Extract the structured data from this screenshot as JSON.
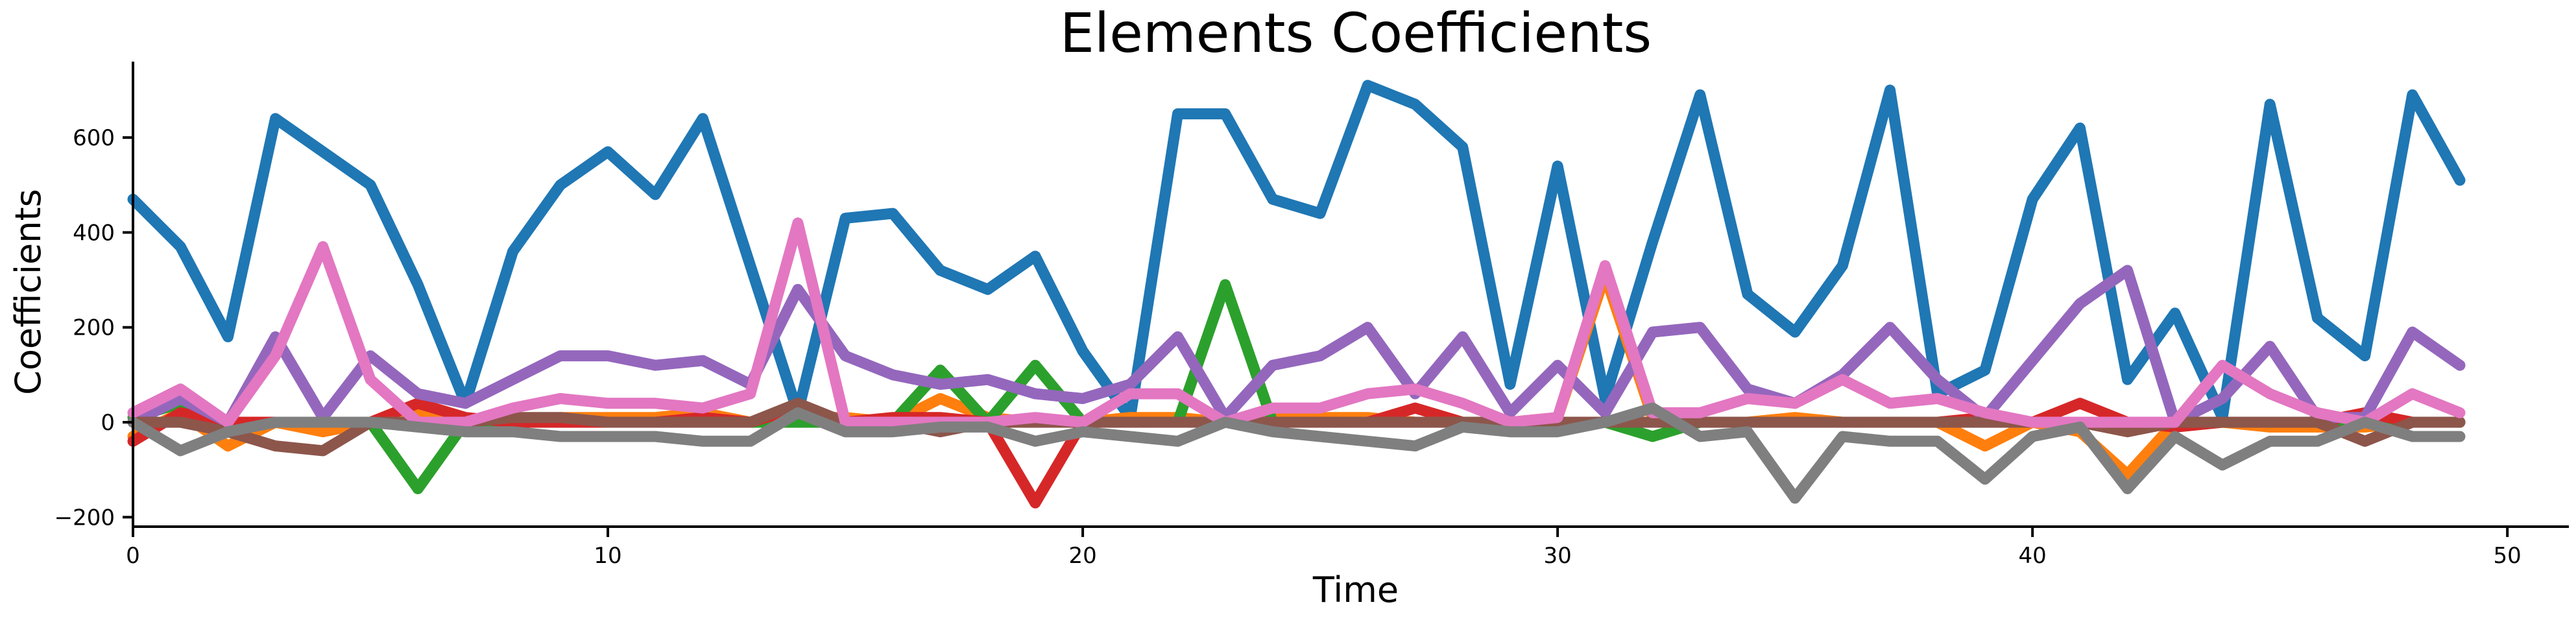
{
  "chart_data": {
    "type": "line",
    "title": "Elements Coefficients",
    "xlabel": "Time",
    "ylabel": "Coefficients",
    "xlim": [
      0,
      51.5
    ],
    "ylim": [
      -220,
      760
    ],
    "xticks": [
      0,
      10,
      20,
      30,
      40,
      50
    ],
    "yticks": [
      -200,
      0,
      200,
      400,
      600
    ],
    "legend": "none",
    "grid": false,
    "x": [
      0,
      1,
      2,
      3,
      4,
      5,
      6,
      7,
      8,
      9,
      10,
      11,
      12,
      13,
      14,
      15,
      16,
      17,
      18,
      19,
      20,
      21,
      22,
      23,
      24,
      25,
      26,
      27,
      28,
      29,
      30,
      31,
      32,
      33,
      34,
      35,
      36,
      37,
      38,
      39,
      40,
      41,
      42,
      43,
      44,
      45,
      46,
      47,
      48,
      49
    ],
    "series": [
      {
        "color": "#1f77b4",
        "values": [
          470,
          370,
          180,
          640,
          570,
          500,
          290,
          40,
          360,
          500,
          570,
          480,
          640,
          330,
          20,
          430,
          440,
          320,
          280,
          350,
          150,
          10,
          650,
          650,
          470,
          440,
          710,
          670,
          580,
          80,
          540,
          50,
          380,
          690,
          270,
          190,
          330,
          700,
          60,
          110,
          470,
          620,
          90,
          230,
          10,
          670,
          220,
          140,
          690,
          510
        ]
      },
      {
        "color": "#ff7f0e",
        "values": [
          -30,
          20,
          -50,
          0,
          -20,
          0,
          20,
          0,
          0,
          10,
          10,
          10,
          20,
          0,
          10,
          10,
          0,
          50,
          10,
          0,
          0,
          10,
          10,
          0,
          10,
          10,
          10,
          0,
          0,
          0,
          10,
          310,
          10,
          0,
          0,
          10,
          0,
          0,
          0,
          -50,
          0,
          -20,
          -110,
          0,
          0,
          -10,
          -10,
          -10,
          0,
          0
        ]
      },
      {
        "color": "#2ca02c",
        "values": [
          10,
          40,
          0,
          0,
          0,
          0,
          -140,
          0,
          0,
          0,
          0,
          0,
          0,
          0,
          0,
          0,
          0,
          110,
          0,
          120,
          0,
          0,
          0,
          290,
          0,
          0,
          0,
          0,
          0,
          0,
          0,
          0,
          -30,
          0,
          0,
          0,
          0,
          0,
          0,
          0,
          0,
          0,
          0,
          0,
          0,
          0,
          0,
          0,
          0,
          0
        ]
      },
      {
        "color": "#d62728",
        "values": [
          -40,
          20,
          0,
          0,
          0,
          0,
          40,
          10,
          0,
          0,
          0,
          0,
          10,
          0,
          30,
          0,
          10,
          10,
          0,
          -170,
          0,
          0,
          0,
          0,
          0,
          0,
          0,
          30,
          0,
          0,
          0,
          0,
          0,
          0,
          0,
          0,
          0,
          0,
          0,
          10,
          0,
          40,
          0,
          -10,
          0,
          0,
          0,
          20,
          0,
          0
        ]
      },
      {
        "color": "#9467bd",
        "values": [
          0,
          50,
          0,
          180,
          10,
          140,
          60,
          40,
          90,
          140,
          140,
          120,
          130,
          80,
          280,
          140,
          100,
          80,
          90,
          60,
          50,
          80,
          180,
          10,
          120,
          140,
          200,
          60,
          180,
          20,
          120,
          20,
          190,
          200,
          70,
          40,
          100,
          200,
          90,
          10,
          130,
          250,
          320,
          0,
          50,
          160,
          10,
          10,
          190,
          120
        ]
      },
      {
        "color": "#8c564b",
        "values": [
          0,
          0,
          -20,
          -50,
          -60,
          0,
          0,
          0,
          10,
          10,
          0,
          0,
          0,
          0,
          40,
          0,
          0,
          -20,
          0,
          0,
          0,
          0,
          0,
          0,
          0,
          0,
          0,
          0,
          0,
          0,
          0,
          0,
          0,
          0,
          0,
          0,
          0,
          0,
          0,
          0,
          0,
          0,
          -20,
          0,
          0,
          0,
          0,
          -40,
          0,
          0
        ]
      },
      {
        "color": "#e377c2",
        "values": [
          20,
          70,
          0,
          140,
          370,
          90,
          0,
          0,
          30,
          50,
          40,
          40,
          30,
          60,
          420,
          0,
          0,
          0,
          0,
          10,
          0,
          60,
          60,
          0,
          30,
          30,
          60,
          70,
          40,
          0,
          10,
          330,
          20,
          20,
          50,
          40,
          90,
          40,
          50,
          20,
          0,
          0,
          0,
          0,
          120,
          60,
          20,
          0,
          60,
          20
        ]
      },
      {
        "color": "#7f7f7f",
        "values": [
          0,
          -60,
          -20,
          0,
          0,
          0,
          -10,
          -20,
          -20,
          -30,
          -30,
          -30,
          -40,
          -40,
          20,
          -20,
          -20,
          -10,
          -10,
          -40,
          -20,
          -30,
          -40,
          0,
          -20,
          -30,
          -40,
          -50,
          -10,
          -20,
          -20,
          0,
          30,
          -30,
          -20,
          -160,
          -30,
          -40,
          -40,
          -120,
          -30,
          -10,
          -140,
          -30,
          -90,
          -40,
          -40,
          0,
          -30,
          -30
        ]
      }
    ]
  }
}
